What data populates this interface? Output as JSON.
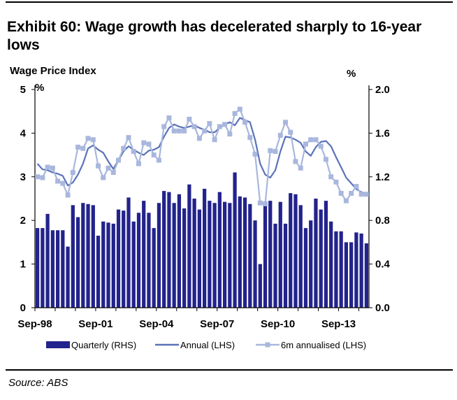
{
  "title": "Exhibit 60: Wage growth has decelerated sharply to 16-year lows",
  "source": "Source:  ABS",
  "colors": {
    "bars": "#23238c",
    "annual": "#5a72b8",
    "sixm": "#a9b7de"
  },
  "chart_data": {
    "type": "bar",
    "title": "Wage Price Index",
    "left_axis": {
      "label": "%",
      "ylim": [
        0,
        5
      ],
      "ticks": [
        "0",
        "1",
        "2",
        "3",
        "4",
        "5"
      ]
    },
    "right_axis": {
      "label": "%",
      "ylim": [
        0,
        2.0
      ],
      "ticks": [
        "0.0",
        "0.4",
        "0.8",
        "1.2",
        "1.6",
        "2.0"
      ]
    },
    "x_ticks": [
      "Sep-98",
      "Sep-01",
      "Sep-04",
      "Sep-07",
      "Sep-10",
      "Sep-13"
    ],
    "x_tick_index": [
      0,
      12,
      24,
      36,
      48,
      60
    ],
    "legend": [
      "Quarterly (RHS)",
      "Annual (LHS)",
      "6m annualised (LHS)"
    ],
    "series": [
      {
        "name": "Quarterly (RHS)",
        "axis": "right",
        "type": "bar",
        "values": [
          0.73,
          0.73,
          0.86,
          0.71,
          0.71,
          0.71,
          0.56,
          0.94,
          0.83,
          0.96,
          0.95,
          0.94,
          0.66,
          0.79,
          0.78,
          0.77,
          0.9,
          0.89,
          1.01,
          0.79,
          0.87,
          0.98,
          0.87,
          0.73,
          0.96,
          1.07,
          1.06,
          0.96,
          1.04,
          0.91,
          1.13,
          1.0,
          0.9,
          1.09,
          0.98,
          0.96,
          1.06,
          0.97,
          0.96,
          1.24,
          1.02,
          1.01,
          0.95,
          0.8,
          0.4,
          0.94,
          0.98,
          0.77,
          0.97,
          0.77,
          1.05,
          1.04,
          0.94,
          0.73,
          0.8,
          1.0,
          0.9,
          0.98,
          0.79,
          0.7,
          0.7,
          0.6,
          0.6,
          0.69,
          0.68,
          0.59
        ]
      },
      {
        "name": "Annual (LHS)",
        "axis": "left",
        "type": "line",
        "values": [
          3.3,
          3.17,
          3.15,
          3.1,
          3.07,
          3.02,
          2.8,
          2.87,
          3.05,
          3.3,
          3.65,
          3.72,
          3.62,
          3.55,
          3.35,
          3.18,
          3.38,
          3.58,
          3.7,
          3.62,
          3.55,
          3.5,
          3.6,
          3.62,
          3.68,
          3.92,
          4.12,
          4.2,
          4.15,
          4.12,
          4.15,
          4.18,
          4.12,
          4.08,
          4.02,
          4.02,
          4.12,
          4.2,
          4.25,
          4.18,
          4.35,
          4.3,
          4.25,
          3.85,
          3.3,
          3.05,
          2.98,
          3.15,
          3.58,
          3.92,
          3.9,
          3.85,
          3.78,
          3.58,
          3.48,
          3.68,
          3.8,
          3.82,
          3.7,
          3.45,
          3.22,
          2.98,
          2.85,
          2.72,
          2.65,
          2.6
        ]
      },
      {
        "name": "6m annualised (LHS)",
        "axis": "left",
        "type": "line",
        "values": [
          3.0,
          2.98,
          3.22,
          3.2,
          2.9,
          2.85,
          2.58,
          3.1,
          3.68,
          3.65,
          3.88,
          3.85,
          3.25,
          2.98,
          3.2,
          3.1,
          3.38,
          3.65,
          3.9,
          3.58,
          3.3,
          3.78,
          3.75,
          3.5,
          3.38,
          4.15,
          4.35,
          4.05,
          4.05,
          4.05,
          4.32,
          4.15,
          3.88,
          4.05,
          4.22,
          3.85,
          4.15,
          4.2,
          3.98,
          4.45,
          4.55,
          4.25,
          3.9,
          3.52,
          2.4,
          2.38,
          3.6,
          3.58,
          3.95,
          4.25,
          4.02,
          3.35,
          3.2,
          3.75,
          3.85,
          3.85,
          3.7,
          3.4,
          3.0,
          2.88,
          2.62,
          2.45,
          2.62,
          2.78,
          2.6,
          2.6
        ]
      }
    ]
  }
}
